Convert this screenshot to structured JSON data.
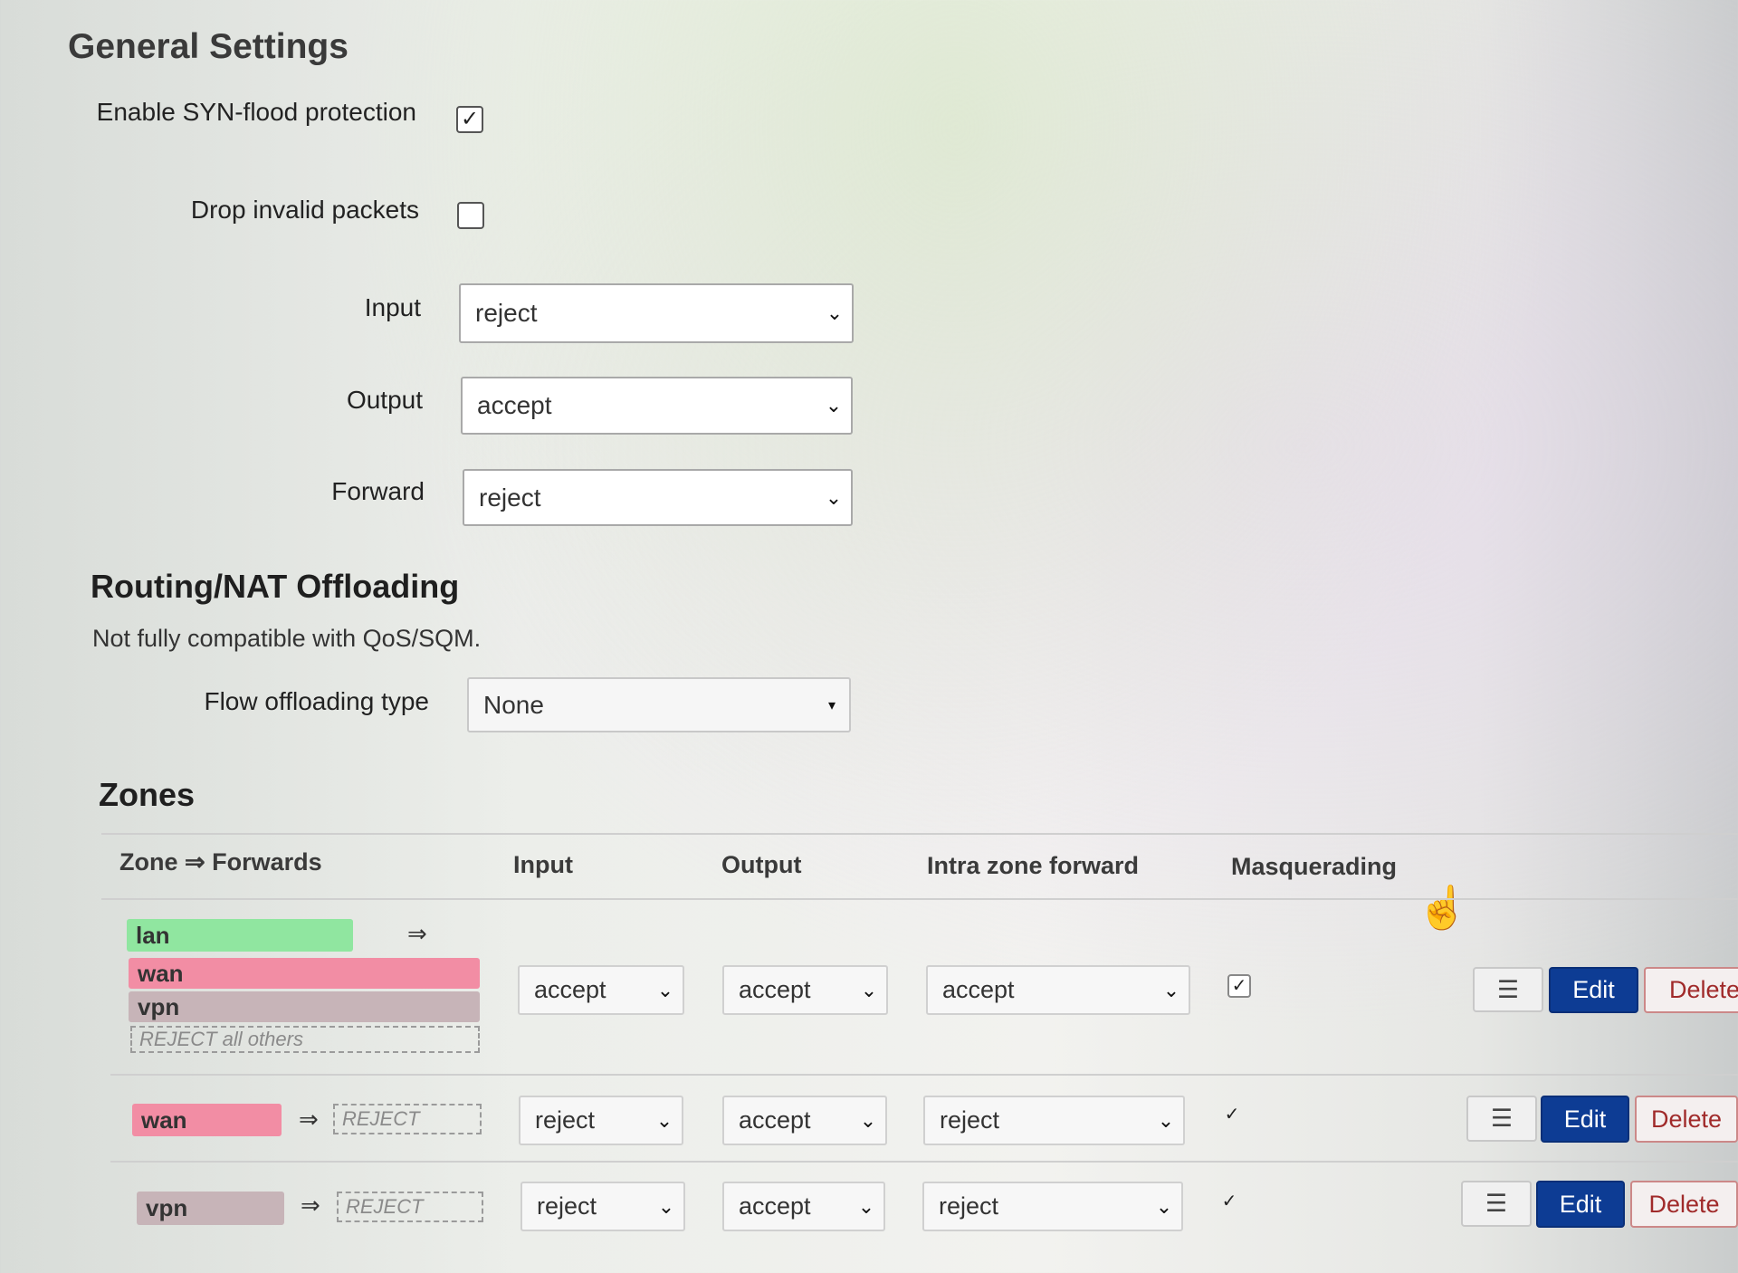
{
  "general": {
    "title": "General Settings",
    "syn_label": "Enable SYN-flood protection",
    "syn_checked": true,
    "drop_label": "Drop invalid packets",
    "drop_checked": false,
    "input_label": "Input",
    "input_value": "reject",
    "output_label": "Output",
    "output_value": "accept",
    "forward_label": "Forward",
    "forward_value": "reject"
  },
  "offloading": {
    "title": "Routing/NAT Offloading",
    "description": "Not fully compatible with QoS/SQM.",
    "flow_label": "Flow offloading type",
    "flow_value": "None"
  },
  "zones": {
    "title": "Zones",
    "headers": {
      "zone_forwards": "Zone ⇒ Forwards",
      "input": "Input",
      "output": "Output",
      "intra": "Intra zone forward",
      "masquerading": "Masquerading"
    },
    "forward_arrow": "⇒",
    "check_glyph": "✓",
    "rows": [
      {
        "zone": "lan",
        "forwards": [
          "wan",
          "vpn"
        ],
        "others": "REJECT all others",
        "input": "accept",
        "output": "accept",
        "intra": "accept",
        "masq": true,
        "edit": "Edit",
        "delete": "Delete"
      },
      {
        "zone": "wan",
        "forward_target": "REJECT",
        "input": "reject",
        "output": "accept",
        "intra": "reject",
        "masq": true,
        "edit": "Edit",
        "delete": "Delete"
      },
      {
        "zone": "vpn",
        "forward_target": "REJECT",
        "input": "reject",
        "output": "accept",
        "intra": "reject",
        "masq": true,
        "edit": "Edit",
        "delete": "Delete"
      }
    ]
  },
  "icons": {
    "chevron": "⌄",
    "caret": "▾",
    "menu": "☰",
    "cursor": "☝"
  },
  "colors": {
    "lan": "#90e6a0",
    "wan": "#f28da4",
    "vpn": "#c7b4b8",
    "edit_button": "#0d3c94",
    "delete_text": "#a02a2a"
  }
}
